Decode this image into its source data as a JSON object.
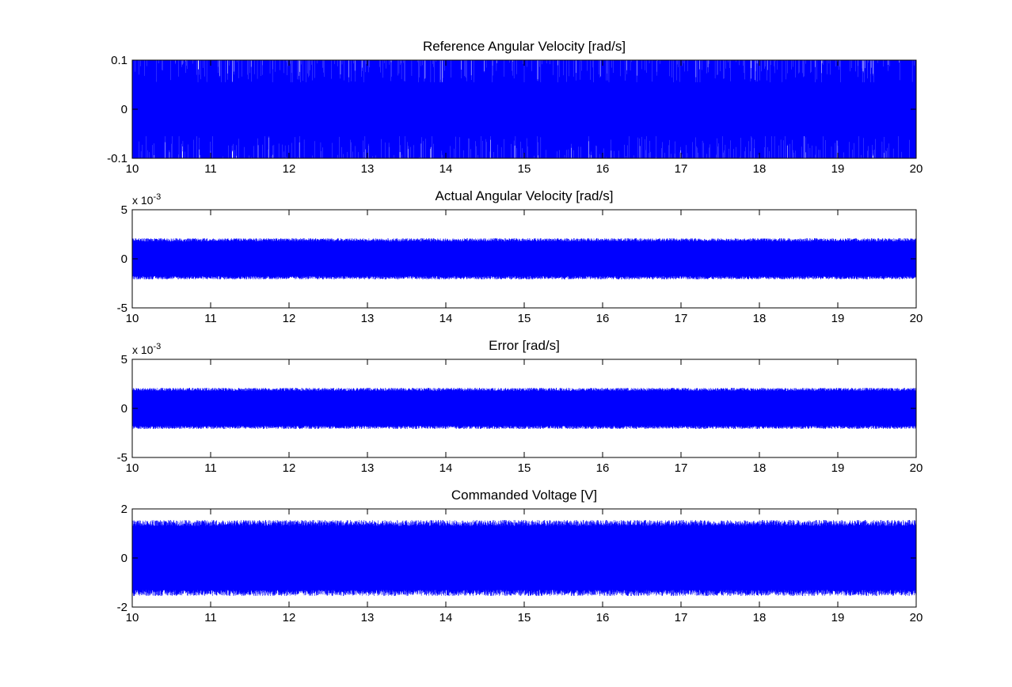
{
  "colors": {
    "series": "#0000ff",
    "axes": "#000000",
    "background": "#ffffff"
  },
  "chart_data": [
    {
      "type": "line",
      "title": "Reference Angular Velocity [rad/s]",
      "xlabel": "",
      "ylabel": "",
      "xlim": [
        10,
        20
      ],
      "ylim": [
        -0.1,
        0.1
      ],
      "xticks": [
        "10",
        "11",
        "12",
        "13",
        "14",
        "15",
        "16",
        "17",
        "18",
        "19",
        "20"
      ],
      "yticks": [
        "-0.1",
        "0",
        "0.1"
      ],
      "y_exponent": "",
      "grid": false,
      "series": [
        {
          "style": "dense-oscillation",
          "x_range": [
            10,
            20
          ],
          "y_min": -0.1,
          "y_max": 0.1
        }
      ]
    },
    {
      "type": "line",
      "title": "Actual Angular Velocity [rad/s]",
      "xlabel": "",
      "ylabel": "",
      "xlim": [
        10,
        20
      ],
      "ylim": [
        -5,
        5
      ],
      "xticks": [
        "10",
        "11",
        "12",
        "13",
        "14",
        "15",
        "16",
        "17",
        "18",
        "19",
        "20"
      ],
      "yticks": [
        "-5",
        "0",
        "5"
      ],
      "y_exponent": "x 10",
      "y_exponent_power": "-3",
      "grid": false,
      "series": [
        {
          "style": "dense-oscillation",
          "x_range": [
            10,
            20
          ],
          "y_min": -2.1,
          "y_max": 2.1
        }
      ]
    },
    {
      "type": "line",
      "title": "Error [rad/s]",
      "xlabel": "",
      "ylabel": "",
      "xlim": [
        10,
        20
      ],
      "ylim": [
        -5,
        5
      ],
      "xticks": [
        "10",
        "11",
        "12",
        "13",
        "14",
        "15",
        "16",
        "17",
        "18",
        "19",
        "20"
      ],
      "yticks": [
        "-5",
        "0",
        "5"
      ],
      "y_exponent": "x 10",
      "y_exponent_power": "-3",
      "grid": false,
      "series": [
        {
          "style": "dense-oscillation",
          "x_range": [
            10,
            20
          ],
          "y_min": -2.1,
          "y_max": 2.1
        }
      ]
    },
    {
      "type": "line",
      "title": "Commanded Voltage [V]",
      "xlabel": "",
      "ylabel": "",
      "xlim": [
        10,
        20
      ],
      "ylim": [
        -2,
        2
      ],
      "xticks": [
        "10",
        "11",
        "12",
        "13",
        "14",
        "15",
        "16",
        "17",
        "18",
        "19",
        "20"
      ],
      "yticks": [
        "-2",
        "0",
        "2"
      ],
      "y_exponent": "",
      "grid": false,
      "series": [
        {
          "style": "dense-oscillation",
          "x_range": [
            10,
            20
          ],
          "y_min": -1.55,
          "y_max": 1.55
        }
      ]
    }
  ]
}
